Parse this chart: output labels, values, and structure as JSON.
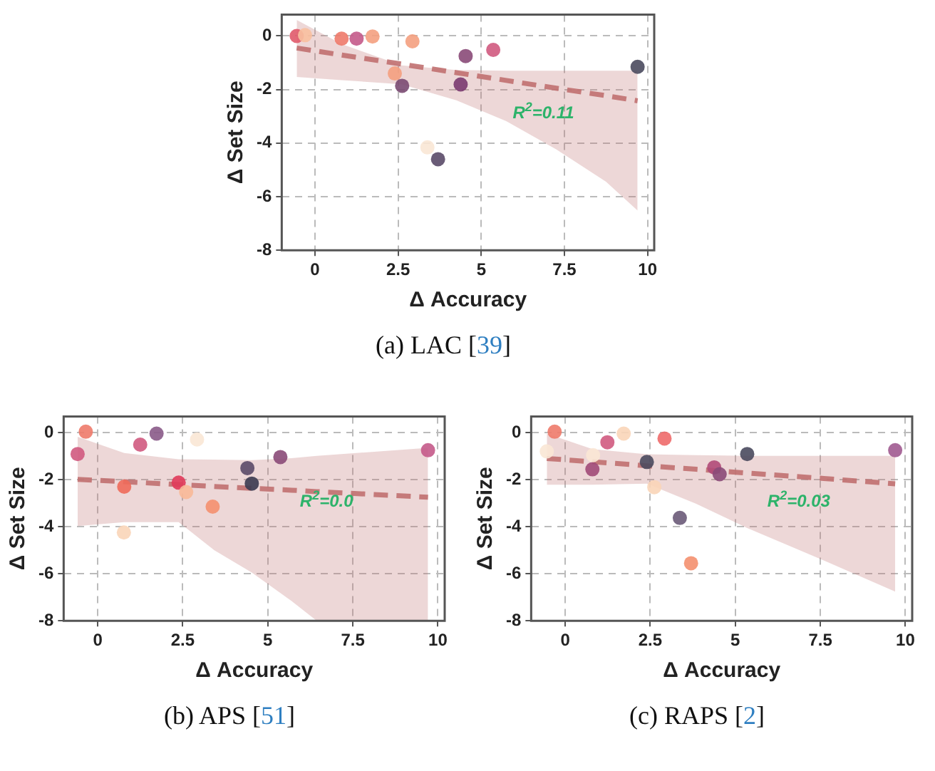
{
  "chart_data": [
    {
      "type": "scatter",
      "xlabel": "Δ Accuracy",
      "ylabel": "Δ Set Size",
      "xlim": [
        -1,
        10.2
      ],
      "ylim": [
        -8,
        0.8
      ],
      "xticks": [
        0,
        2.5,
        5,
        7.5,
        10
      ],
      "yticks": [
        -8,
        -6,
        -4,
        -2,
        0
      ],
      "grid": true,
      "annotations": [
        "R$^{2}$=0.11",
        "(a) LAC [39]"
      ],
      "series": [
        {
          "type": "scatter",
          "marker": "circle",
          "x": [
            -0.55,
            -0.3,
            0.8,
            1.25,
            1.73,
            2.93,
            2.4,
            2.62,
            3.38,
            3.7,
            4.38,
            4.53,
            5.36,
            9.7
          ],
          "values": [
            0,
            0.03,
            -0.1,
            -0.1,
            -0.02,
            -0.2,
            -1.4,
            -1.86,
            -4.16,
            -4.6,
            -1.81,
            -0.75,
            -0.52,
            -1.15
          ],
          "colors": [
            "#e05a6a",
            "#f8c0a0",
            "#ee7a6a",
            "#c45a8a",
            "#f4a07f",
            "#f4a07f",
            "#f4a07f",
            "#7a4a72",
            "#f9e7d5",
            "#5a4a68",
            "#7a3a70",
            "#8a4a78",
            "#d05a80",
            "#4a4a5e"
          ]
        },
        {
          "type": "line",
          "x": [
            -0.55,
            0.8,
            2.6,
            4.25,
            5.75,
            7.25,
            8.75,
            9.7
          ],
          "values": [
            -0.45,
            -0.71,
            -1.05,
            -1.37,
            -1.66,
            -1.95,
            -2.23,
            -2.42
          ],
          "lower": [
            -1.53,
            -1.65,
            -1.8,
            -2.4,
            -3.18,
            -4.23,
            -5.44,
            -6.52
          ],
          "upper": [
            0.6,
            -0.3,
            -1.1,
            -1.27,
            -1.3,
            -1.3,
            -1.3,
            -1.3
          ],
          "color": "#c07070",
          "line_style": "dashed"
        }
      ]
    },
    {
      "type": "scatter",
      "xlabel": "Δ Accuracy",
      "ylabel": "Δ Set Size",
      "xlim": [
        -1,
        10.2
      ],
      "ylim": [
        -8,
        0.7
      ],
      "xticks": [
        0,
        2.5,
        5,
        7.5,
        10
      ],
      "yticks": [
        -8,
        -6,
        -4,
        -2,
        0
      ],
      "grid": true,
      "annotations": [
        "R$^{2}$=0.0",
        "(b) APS [51]"
      ],
      "series": [
        {
          "type": "scatter",
          "marker": "circle",
          "x": [
            -0.59,
            -0.35,
            0.78,
            0.77,
            1.25,
            1.73,
            2.38,
            2.6,
            2.92,
            3.38,
            4.4,
            4.53,
            5.37,
            9.71
          ],
          "values": [
            -0.9,
            0.05,
            -2.29,
            -4.24,
            -0.5,
            -0.03,
            -2.12,
            -2.52,
            -0.28,
            -3.14,
            -1.5,
            -2.16,
            -1.03,
            -0.74
          ],
          "colors": [
            "#d05a80",
            "#ee7a6a",
            "#ee6a5a",
            "#f9d5b8",
            "#d05a80",
            "#8a5a88",
            "#e03a5a",
            "#f8b998",
            "#f9e7d5",
            "#f4906f",
            "#5a4a68",
            "#3a3a50",
            "#8a4a78",
            "#c45a8a"
          ]
        },
        {
          "type": "line",
          "x": [
            -0.59,
            0.78,
            2.38,
            3.43,
            4.53,
            5.7,
            6.44,
            9.71
          ],
          "values": [
            -1.98,
            -2.08,
            -2.2,
            -2.28,
            -2.36,
            -2.44,
            -2.5,
            -2.74
          ],
          "lower": [
            -3.97,
            -3.8,
            -3.8,
            -5.0,
            -5.95,
            -7.16,
            -8,
            -8
          ],
          "upper": [
            -0.17,
            -0.86,
            -1.12,
            -1.14,
            -1.16,
            -1.08,
            -0.98,
            -0.64
          ],
          "color": "#c07070",
          "line_style": "dashed"
        }
      ]
    },
    {
      "type": "scatter",
      "xlabel": "Δ Accuracy",
      "ylabel": "Δ Set Size",
      "xlim": [
        -1,
        10.2
      ],
      "ylim": [
        -8,
        0.7
      ],
      "xticks": [
        0,
        2.5,
        5,
        7.5,
        10
      ],
      "yticks": [
        -8,
        -6,
        -4,
        -2,
        0
      ],
      "grid": true,
      "annotations": [
        "R$^{2}$=0.03",
        "(c) RAPS [2]"
      ],
      "series": [
        {
          "type": "scatter",
          "marker": "circle",
          "x": [
            -0.54,
            -0.31,
            0.8,
            0.82,
            1.24,
            1.72,
            2.4,
            2.62,
            2.92,
            3.37,
            3.7,
            4.38,
            4.54,
            5.35,
            9.7
          ],
          "values": [
            -0.79,
            0.05,
            -1.55,
            -0.95,
            -0.4,
            -0.03,
            -1.24,
            -2.31,
            -0.24,
            -3.62,
            -5.55,
            -1.47,
            -1.76,
            -0.9,
            -0.74
          ],
          "colors": [
            "#f9e7d5",
            "#ee7a6a",
            "#a04a78",
            "#f9e7d5",
            "#d05a80",
            "#f9d5b8",
            "#4a4a5e",
            "#f9d5b8",
            "#ee6a6a",
            "#6a5a78",
            "#f4906f",
            "#b04a78",
            "#8a4a78",
            "#4a4a5e",
            "#a05a90"
          ]
        },
        {
          "type": "line",
          "x": [
            -0.54,
            0.8,
            2.4,
            3.85,
            5.35,
            7.6,
            9.7
          ],
          "values": [
            -1.09,
            -1.23,
            -1.4,
            -1.55,
            -1.71,
            -1.94,
            -2.17
          ],
          "lower": [
            -2.21,
            -2.21,
            -2.16,
            -3.02,
            -4.05,
            -5.43,
            -6.76
          ],
          "upper": [
            -0.03,
            -0.69,
            -0.91,
            -0.95,
            -0.98,
            -0.98,
            -0.98
          ],
          "color": "#c07070",
          "line_style": "dashed"
        }
      ]
    }
  ]
}
